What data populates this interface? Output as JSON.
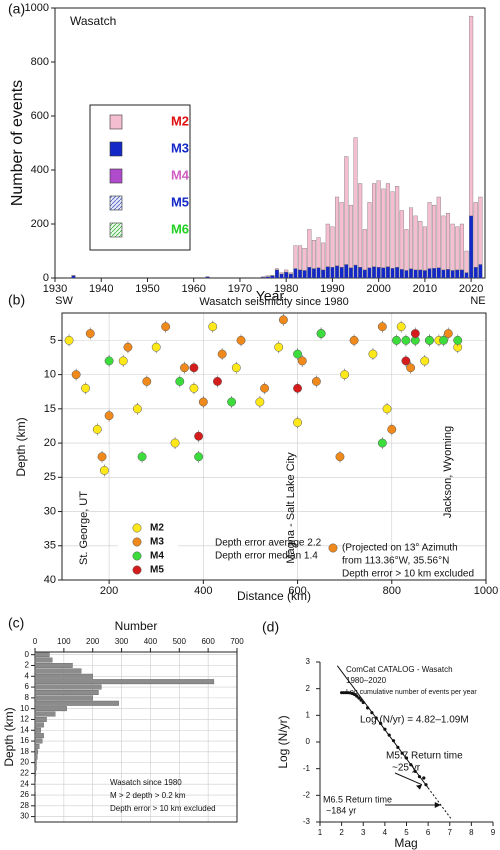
{
  "chart_data": [
    {
      "type": "bar",
      "stacked": true,
      "panel_label": "(a)",
      "title": "Wasatch",
      "xlabel": "Year",
      "ylabel": "Number of events",
      "x": [
        1934,
        1963,
        1975,
        1976,
        1977,
        1978,
        1979,
        1980,
        1981,
        1982,
        1983,
        1984,
        1985,
        1986,
        1987,
        1988,
        1989,
        1990,
        1991,
        1992,
        1993,
        1994,
        1995,
        1996,
        1997,
        1998,
        1999,
        2000,
        2001,
        2002,
        2003,
        2004,
        2005,
        2006,
        2007,
        2008,
        2009,
        2010,
        2011,
        2012,
        2013,
        2014,
        2015,
        2016,
        2017,
        2018,
        2019,
        2020,
        2021,
        2022
      ],
      "series": [
        {
          "name": "M3",
          "color": "#1428c8",
          "text_color": "#1428c8",
          "values": [
            8,
            4,
            3,
            5,
            8,
            30,
            15,
            22,
            15,
            35,
            30,
            28,
            40,
            35,
            38,
            30,
            42,
            40,
            45,
            40,
            50,
            38,
            48,
            40,
            30,
            38,
            42,
            40,
            38,
            42,
            36,
            40,
            32,
            28,
            34,
            30,
            30,
            28,
            35,
            36,
            38,
            30,
            32,
            28,
            30,
            30,
            20,
            230,
            40,
            50
          ]
        },
        {
          "name": "M2",
          "color": "#f5bdd0",
          "text_color": "#e01010",
          "values": [
            2,
            1,
            2,
            3,
            2,
            5,
            5,
            8,
            5,
            85,
            90,
            82,
            140,
            105,
            112,
            100,
            158,
            150,
            255,
            240,
            400,
            232,
            472,
            310,
            150,
            242,
            308,
            320,
            292,
            308,
            284,
            300,
            218,
            152,
            226,
            200,
            180,
            162,
            245,
            234,
            262,
            200,
            208,
            172,
            160,
            170,
            80,
            740,
            240,
            250
          ]
        }
      ],
      "other_magnitudes": [
        {
          "name": "M4",
          "color": "#b04ccc",
          "text_color": "#d060c0"
        },
        {
          "name": "M5",
          "color": "#c8cff2",
          "text_color": "#1428c8"
        },
        {
          "name": "M6",
          "color": "#d4f2d4",
          "text_color": "#20d020"
        }
      ],
      "xlim": [
        1930,
        2023
      ],
      "xticks": [
        1930,
        1940,
        1950,
        1960,
        1970,
        1980,
        1990,
        2000,
        2010,
        2020
      ],
      "ylim": [
        0,
        1000
      ],
      "yticks": [
        0,
        200,
        400,
        600,
        800,
        1000
      ],
      "grid": false
    },
    {
      "type": "scatter",
      "panel_label": "(b)",
      "title": "Wasatch seismicity since 1980",
      "xlabel": "Distance (km)",
      "ylabel": "Depth (km)",
      "y_inverted": true,
      "annotations": [
        "SW",
        "NE",
        "St. George, UT",
        "Magna - Salt Lake City",
        "Jackson, Wyoming",
        "Depth error average 2.2",
        "Depth error median 1.4",
        "(Projected on 13° Azimuth",
        "from 113.36°W, 35.56°N",
        "Depth error > 10 km excluded"
      ],
      "series": [
        {
          "name": "M2",
          "color": "#ffe81a",
          "x": [
            115,
            150,
            175,
            190,
            230,
            260,
            300,
            340,
            380,
            420,
            470,
            520,
            560,
            600,
            650,
            700,
            760,
            790,
            820,
            870,
            900,
            940
          ],
          "y": [
            5,
            12,
            18,
            24,
            8,
            15,
            6,
            20,
            12,
            3,
            9,
            14,
            6,
            17,
            4,
            10,
            7,
            15,
            3,
            8,
            5,
            6
          ]
        },
        {
          "name": "M3",
          "color": "#f0891c",
          "x": [
            130,
            160,
            185,
            200,
            240,
            280,
            320,
            360,
            400,
            440,
            480,
            530,
            570,
            610,
            640,
            690,
            720,
            780,
            800,
            840,
            880,
            920
          ],
          "y": [
            10,
            4,
            22,
            16,
            6,
            11,
            3,
            9,
            14,
            7,
            5,
            12,
            2,
            8,
            11,
            22,
            5,
            3,
            18,
            9,
            5,
            4
          ]
        },
        {
          "name": "M4",
          "color": "#3ddc3d",
          "x": [
            200,
            270,
            350,
            390,
            460,
            600,
            650,
            780,
            810,
            830,
            850,
            880,
            910,
            940
          ],
          "y": [
            8,
            22,
            11,
            22,
            14,
            7,
            4,
            20,
            5,
            5,
            5,
            5,
            5,
            5
          ]
        },
        {
          "name": "M5",
          "color": "#d41c1c",
          "x": [
            380,
            430,
            600,
            390,
            830,
            850
          ],
          "y": [
            9,
            11,
            12,
            19,
            8,
            4
          ]
        }
      ],
      "xlim": [
        100,
        1000
      ],
      "xticks": [
        200,
        400,
        600,
        800,
        1000
      ],
      "ylim": [
        1,
        40
      ],
      "yticks": [
        5,
        10,
        15,
        20,
        25,
        30,
        35,
        40
      ],
      "grid": true
    },
    {
      "type": "bar",
      "orientation": "horizontal",
      "panel_label": "(c)",
      "title": "Number",
      "ylabel": "Depth (km)",
      "y_inverted": true,
      "color": "#8c8c8c",
      "annotations": [
        "Wasatch since 1980",
        "M > 2 depth > 0.2 km",
        "Depth error > 10 km excluded"
      ],
      "categories": [
        0,
        1,
        2,
        3,
        4,
        5,
        6,
        7,
        8,
        9,
        10,
        11,
        12,
        13,
        14,
        15,
        16,
        17,
        18,
        19,
        20,
        21,
        22,
        23,
        24,
        25,
        26,
        27,
        28,
        29,
        30
      ],
      "values": [
        50,
        60,
        130,
        160,
        200,
        620,
        230,
        220,
        200,
        290,
        110,
        70,
        40,
        30,
        20,
        30,
        25,
        15,
        10,
        8,
        5,
        5,
        3,
        2,
        1,
        1,
        0,
        0,
        0,
        0,
        0
      ],
      "xlim": [
        0,
        700
      ],
      "xticks": [
        0,
        100,
        200,
        300,
        400,
        500,
        600,
        700
      ],
      "ylim": [
        -0.5,
        31
      ],
      "yticks": [
        0,
        2,
        4,
        6,
        8,
        10,
        12,
        14,
        16,
        18,
        20,
        22,
        24,
        26,
        28,
        30
      ],
      "grid": true
    },
    {
      "type": "scatter",
      "panel_label": "(d)",
      "xlabel": "Mag",
      "ylabel": "Log (N/yr)",
      "annotations": [
        "ComCat CATALOG - Wasatch",
        "1980–2020",
        "Log cumulative number of events per year",
        "Log (N/yr) = 4.82–1.09M",
        "M5.7 Return time",
        "~25 yr",
        "M6.5 Return time",
        "~184 yr"
      ],
      "series": [
        {
          "name": "Cumulative",
          "color": "#111111",
          "x": [
            2.0,
            2.1,
            2.2,
            2.3,
            2.4,
            2.5,
            2.6,
            2.7,
            2.8,
            2.9,
            3.0,
            3.2,
            3.4,
            3.6,
            3.8,
            4.0,
            4.2,
            4.4,
            4.6,
            4.8,
            5.0,
            5.2,
            5.4,
            5.6,
            5.8,
            5.9
          ],
          "y": [
            1.85,
            1.85,
            1.85,
            1.85,
            1.84,
            1.82,
            1.78,
            1.72,
            1.65,
            1.57,
            1.48,
            1.28,
            1.1,
            0.9,
            0.7,
            0.48,
            0.26,
            0.05,
            -0.2,
            -0.42,
            -0.6,
            -0.85,
            -1.1,
            -1.3,
            -1.35,
            -1.6
          ]
        }
      ],
      "fit": {
        "x": [
          1.8,
          6.0,
          7.1
        ],
        "y": [
          2.86,
          -1.72,
          -2.92
        ]
      },
      "xlim": [
        1,
        9
      ],
      "xticks": [
        1,
        2,
        3,
        4,
        5,
        6,
        7,
        8,
        9
      ],
      "ylim": [
        -3,
        3
      ],
      "yticks": [
        -3,
        -2,
        -1,
        0,
        1,
        2,
        3
      ],
      "grid": false
    }
  ]
}
